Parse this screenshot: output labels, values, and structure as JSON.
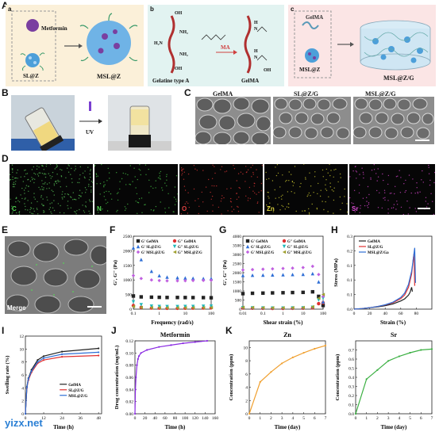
{
  "panels": {
    "A": "A",
    "B": "B",
    "C": "C",
    "D": "D",
    "E": "E",
    "F": "F",
    "G": "G",
    "H": "H",
    "I": "I",
    "J": "J",
    "K": "K"
  },
  "panelA": {
    "sub": "a",
    "metformin": "Metformin",
    "slz": "SL@Z",
    "mslz": "MSL@Z"
  },
  "panelB": {
    "sub": "b",
    "gelatin": "Gelatine type A",
    "ma": "MA",
    "gelma": "GelMA",
    "groups": [
      "OH",
      "NH₂",
      "H₂N",
      "NH₂",
      "OH",
      "H",
      "N",
      "H",
      "N",
      "OH"
    ]
  },
  "panelC": {
    "sub": "c",
    "gelma": "GelMA",
    "mslz": "MSL@Z",
    "product": "MSL@Z/G"
  },
  "uv": "UV",
  "sem_titles": [
    "GelMA",
    "SL@Z/G",
    "MSL@Z/G"
  ],
  "fluo_labels": [
    "C",
    "N",
    "O",
    "Zn",
    "Sr"
  ],
  "fluo_colors": [
    "#4fae4f",
    "#3fae3f",
    "#c43030",
    "#b9b52c",
    "#c23fb9"
  ],
  "merge": "Merge",
  "chart_data": [
    {
      "id": "F",
      "type": "scatter",
      "xlabel": "Frequency (rad/s)",
      "ylabel": "G', G'' (Pa)",
      "xscale": "log",
      "xlim": [
        0.1,
        100
      ],
      "ylim": [
        0,
        2500
      ],
      "yticks": [
        0,
        500,
        1000,
        1500,
        2000,
        2500
      ],
      "xticks": [
        "0.1",
        "1",
        "10",
        "100"
      ],
      "legend": [
        "G' GelMA",
        "G'' GelMA",
        "G' SL@Z/G",
        "G'' SL@Z/G",
        "G' MSL@Z/G",
        "G'' MSL@Z/G"
      ],
      "series": [
        {
          "name": "G' GelMA",
          "color": "#222222",
          "marker": "square",
          "x": [
            0.1,
            0.2,
            0.5,
            1,
            2,
            5,
            10,
            20,
            50,
            100
          ],
          "y": [
            450,
            420,
            410,
            405,
            400,
            400,
            398,
            396,
            395,
            390
          ]
        },
        {
          "name": "G'' GelMA",
          "color": "#e03030",
          "marker": "circle",
          "x": [
            0.1,
            0.2,
            0.5,
            1,
            2,
            5,
            10,
            20,
            50,
            100
          ],
          "y": [
            120,
            60,
            40,
            35,
            30,
            30,
            32,
            35,
            40,
            45
          ]
        },
        {
          "name": "G' SL@Z/G",
          "color": "#2f6fd6",
          "marker": "triangle",
          "x": [
            0.1,
            0.2,
            0.5,
            1,
            2,
            5,
            10,
            20,
            50,
            100
          ],
          "y": [
            2100,
            1700,
            1300,
            1150,
            1100,
            1080,
            1070,
            1060,
            1050,
            1050
          ]
        },
        {
          "name": "G'' SL@Z/G",
          "color": "#20b8b8",
          "marker": "triangle-down",
          "x": [
            0.1,
            0.2,
            0.5,
            1,
            2,
            5,
            10,
            20,
            50,
            100
          ],
          "y": [
            250,
            150,
            100,
            90,
            85,
            85,
            88,
            90,
            95,
            100
          ]
        },
        {
          "name": "G' MSL@Z/G",
          "color": "#c060e0",
          "marker": "diamond",
          "x": [
            0.1,
            0.2,
            0.5,
            1,
            2,
            5,
            10,
            20,
            50,
            100
          ],
          "y": [
            1150,
            1050,
            1000,
            980,
            970,
            970,
            975,
            980,
            985,
            990
          ]
        },
        {
          "name": "G'' MSL@Z/G",
          "color": "#a0a030",
          "marker": "triangle-left",
          "x": [
            0.1,
            0.2,
            0.5,
            1,
            2,
            5,
            10,
            20,
            50,
            100
          ],
          "y": [
            90,
            60,
            50,
            48,
            45,
            45,
            46,
            48,
            50,
            52
          ]
        }
      ]
    },
    {
      "id": "G",
      "type": "scatter",
      "xlabel": "Shear strain (%)",
      "ylabel": "G', G'' (Pa)",
      "xscale": "log",
      "xlim": [
        0.01,
        100
      ],
      "ylim": [
        0,
        4000
      ],
      "yticks": [
        0,
        500,
        1000,
        1500,
        2000,
        2500,
        3000,
        3500,
        4000
      ],
      "xticks": [
        "0.01",
        "0.1",
        "1",
        "10",
        "100"
      ],
      "legend": [
        "G' GelMA",
        "G'' GelMA",
        "G' SL@Z/G",
        "G'' SL@Z/G",
        "G' MSL@Z/G",
        "G'' MSL@Z/G"
      ],
      "series": [
        {
          "name": "G' GelMA",
          "color": "#222222",
          "marker": "square",
          "x": [
            0.01,
            0.03,
            0.1,
            0.3,
            1,
            3,
            10,
            30,
            60,
            100
          ],
          "y": [
            850,
            870,
            880,
            890,
            900,
            910,
            920,
            950,
            700,
            200
          ]
        },
        {
          "name": "G'' GelMA",
          "color": "#e03030",
          "marker": "circle",
          "x": [
            0.01,
            0.03,
            0.1,
            0.3,
            1,
            3,
            10,
            30,
            60,
            100
          ],
          "y": [
            60,
            50,
            45,
            40,
            40,
            45,
            50,
            70,
            300,
            350
          ]
        },
        {
          "name": "G' SL@Z/G",
          "color": "#2f6fd6",
          "marker": "triangle",
          "x": [
            0.01,
            0.03,
            0.1,
            0.3,
            1,
            3,
            10,
            30,
            60,
            100
          ],
          "y": [
            1850,
            1860,
            1870,
            1880,
            1890,
            1900,
            1910,
            1950,
            1500,
            400
          ]
        },
        {
          "name": "G'' SL@Z/G",
          "color": "#20b8b8",
          "marker": "triangle-down",
          "x": [
            0.01,
            0.03,
            0.1,
            0.3,
            1,
            3,
            10,
            30,
            60,
            100
          ],
          "y": [
            80,
            70,
            60,
            55,
            55,
            60,
            70,
            100,
            500,
            600
          ]
        },
        {
          "name": "G' MSL@Z/G",
          "color": "#c060e0",
          "marker": "diamond",
          "x": [
            0.01,
            0.03,
            0.1,
            0.3,
            1,
            3,
            10,
            30,
            60,
            100
          ],
          "y": [
            2150,
            2170,
            2190,
            2210,
            2230,
            2250,
            2280,
            2350,
            1900,
            700
          ]
        },
        {
          "name": "G'' MSL@Z/G",
          "color": "#a0a030",
          "marker": "triangle-left",
          "x": [
            0.01,
            0.03,
            0.1,
            0.3,
            1,
            3,
            10,
            30,
            60,
            100
          ],
          "y": [
            100,
            90,
            80,
            75,
            75,
            80,
            90,
            130,
            600,
            800
          ]
        }
      ]
    },
    {
      "id": "H",
      "type": "line",
      "xlabel": "Strain (%)",
      "ylabel": "Stress (MPa)",
      "xlim": [
        0,
        100
      ],
      "ylim": [
        0,
        0.25
      ],
      "yticks": [
        0.0,
        0.05,
        0.1,
        0.15,
        0.2,
        0.25
      ],
      "xticks": [
        0,
        20,
        40,
        60,
        80
      ],
      "legend": [
        "GelMA",
        "SL@Z/G",
        "MSL@Z/Ga"
      ],
      "series": [
        {
          "name": "GelMA",
          "color": "#222222",
          "x": [
            0,
            10,
            20,
            30,
            40,
            50,
            60,
            65,
            70,
            72,
            74,
            75
          ],
          "y": [
            0,
            0.002,
            0.005,
            0.008,
            0.012,
            0.018,
            0.028,
            0.035,
            0.048,
            0.058,
            0.075,
            0.06
          ]
        },
        {
          "name": "SL@Z/G",
          "color": "#e03030",
          "x": [
            0,
            10,
            20,
            30,
            40,
            50,
            60,
            65,
            70,
            74,
            76,
            77,
            78
          ],
          "y": [
            0,
            0.002,
            0.005,
            0.009,
            0.014,
            0.022,
            0.036,
            0.048,
            0.075,
            0.12,
            0.17,
            0.19,
            0.08
          ]
        },
        {
          "name": "MSL@Z/Ga",
          "color": "#2f6fd6",
          "x": [
            0,
            10,
            20,
            30,
            40,
            50,
            60,
            65,
            70,
            74,
            76,
            78,
            79
          ],
          "y": [
            0,
            0.002,
            0.005,
            0.009,
            0.015,
            0.024,
            0.04,
            0.055,
            0.085,
            0.13,
            0.17,
            0.21,
            0.09
          ]
        }
      ]
    },
    {
      "id": "I",
      "type": "line",
      "xlabel": "Time (h)",
      "ylabel": "Swelling rate (%)",
      "xlim": [
        0,
        50
      ],
      "ylim": [
        0,
        12
      ],
      "yticks": [
        0,
        2,
        4,
        6,
        8,
        10,
        12
      ],
      "xticks": [
        0,
        12,
        24,
        36,
        48
      ],
      "legend": [
        "GelMA",
        "SL@Z/G",
        "MSL@Z/G"
      ],
      "series": [
        {
          "name": "GelMA",
          "color": "#222222",
          "x": [
            0,
            1,
            2,
            4,
            8,
            12,
            24,
            48
          ],
          "y": [
            0,
            4.2,
            5.5,
            6.8,
            8.3,
            8.9,
            9.6,
            10.1
          ]
        },
        {
          "name": "SL@Z/G",
          "color": "#e03030",
          "x": [
            0,
            1,
            2,
            4,
            8,
            12,
            24,
            48
          ],
          "y": [
            0,
            4.0,
            5.2,
            6.4,
            7.8,
            8.3,
            8.8,
            9.0
          ]
        },
        {
          "name": "MSL@Z/G",
          "color": "#2f6fd6",
          "x": [
            0,
            1,
            2,
            4,
            8,
            12,
            24,
            48
          ],
          "y": [
            0,
            4.1,
            5.4,
            6.6,
            8.0,
            8.6,
            9.2,
            9.5
          ]
        }
      ]
    },
    {
      "id": "J",
      "type": "line",
      "title": "Metformin",
      "xlabel": "Time (h)",
      "ylabel": "Drug concentration (mg/mL)",
      "xlim": [
        0,
        160
      ],
      "ylim": [
        0,
        0.12
      ],
      "yticks": [
        0.0,
        0.02,
        0.04,
        0.06,
        0.08,
        0.1,
        0.12
      ],
      "xticks": [
        0,
        20,
        40,
        60,
        80,
        100,
        120,
        140,
        160
      ],
      "series": [
        {
          "name": "",
          "color": "#8a2be2",
          "x": [
            0,
            1,
            2,
            4,
            6,
            8,
            12,
            24,
            48,
            72,
            96,
            120,
            144
          ],
          "y": [
            0,
            0.04,
            0.06,
            0.08,
            0.09,
            0.095,
            0.1,
            0.105,
            0.11,
            0.113,
            0.116,
            0.118,
            0.12
          ]
        }
      ]
    },
    {
      "id": "K1",
      "type": "line",
      "title": "Zn",
      "xlabel": "Time (day)",
      "ylabel": "Concentration (ppm)",
      "xlim": [
        0,
        7
      ],
      "ylim": [
        0,
        11
      ],
      "yticks": [
        0,
        2,
        4,
        6,
        8,
        10
      ],
      "xticks": [
        0,
        1,
        2,
        3,
        4,
        5,
        6,
        7
      ],
      "series": [
        {
          "name": "",
          "color": "#f0a030",
          "x": [
            0,
            1,
            2,
            3,
            4,
            5,
            6,
            7
          ],
          "y": [
            0,
            4.8,
            6.3,
            7.6,
            8.5,
            9.2,
            9.8,
            10.3
          ]
        }
      ]
    },
    {
      "id": "K2",
      "type": "line",
      "title": "Sr",
      "xlabel": "Time (day)",
      "ylabel": "Concentration (ppm)",
      "xlim": [
        0,
        7
      ],
      "ylim": [
        0,
        0.8
      ],
      "yticks": [
        0.0,
        0.1,
        0.2,
        0.3,
        0.4,
        0.5,
        0.6,
        0.7
      ],
      "xticks": [
        0,
        1,
        2,
        3,
        4,
        5,
        6,
        7
      ],
      "series": [
        {
          "name": "",
          "color": "#3cb043",
          "x": [
            0,
            1,
            2,
            3,
            4,
            5,
            6,
            7
          ],
          "y": [
            0,
            0.38,
            0.48,
            0.58,
            0.63,
            0.67,
            0.7,
            0.71
          ]
        }
      ]
    }
  ],
  "watermark": "yizx.net"
}
